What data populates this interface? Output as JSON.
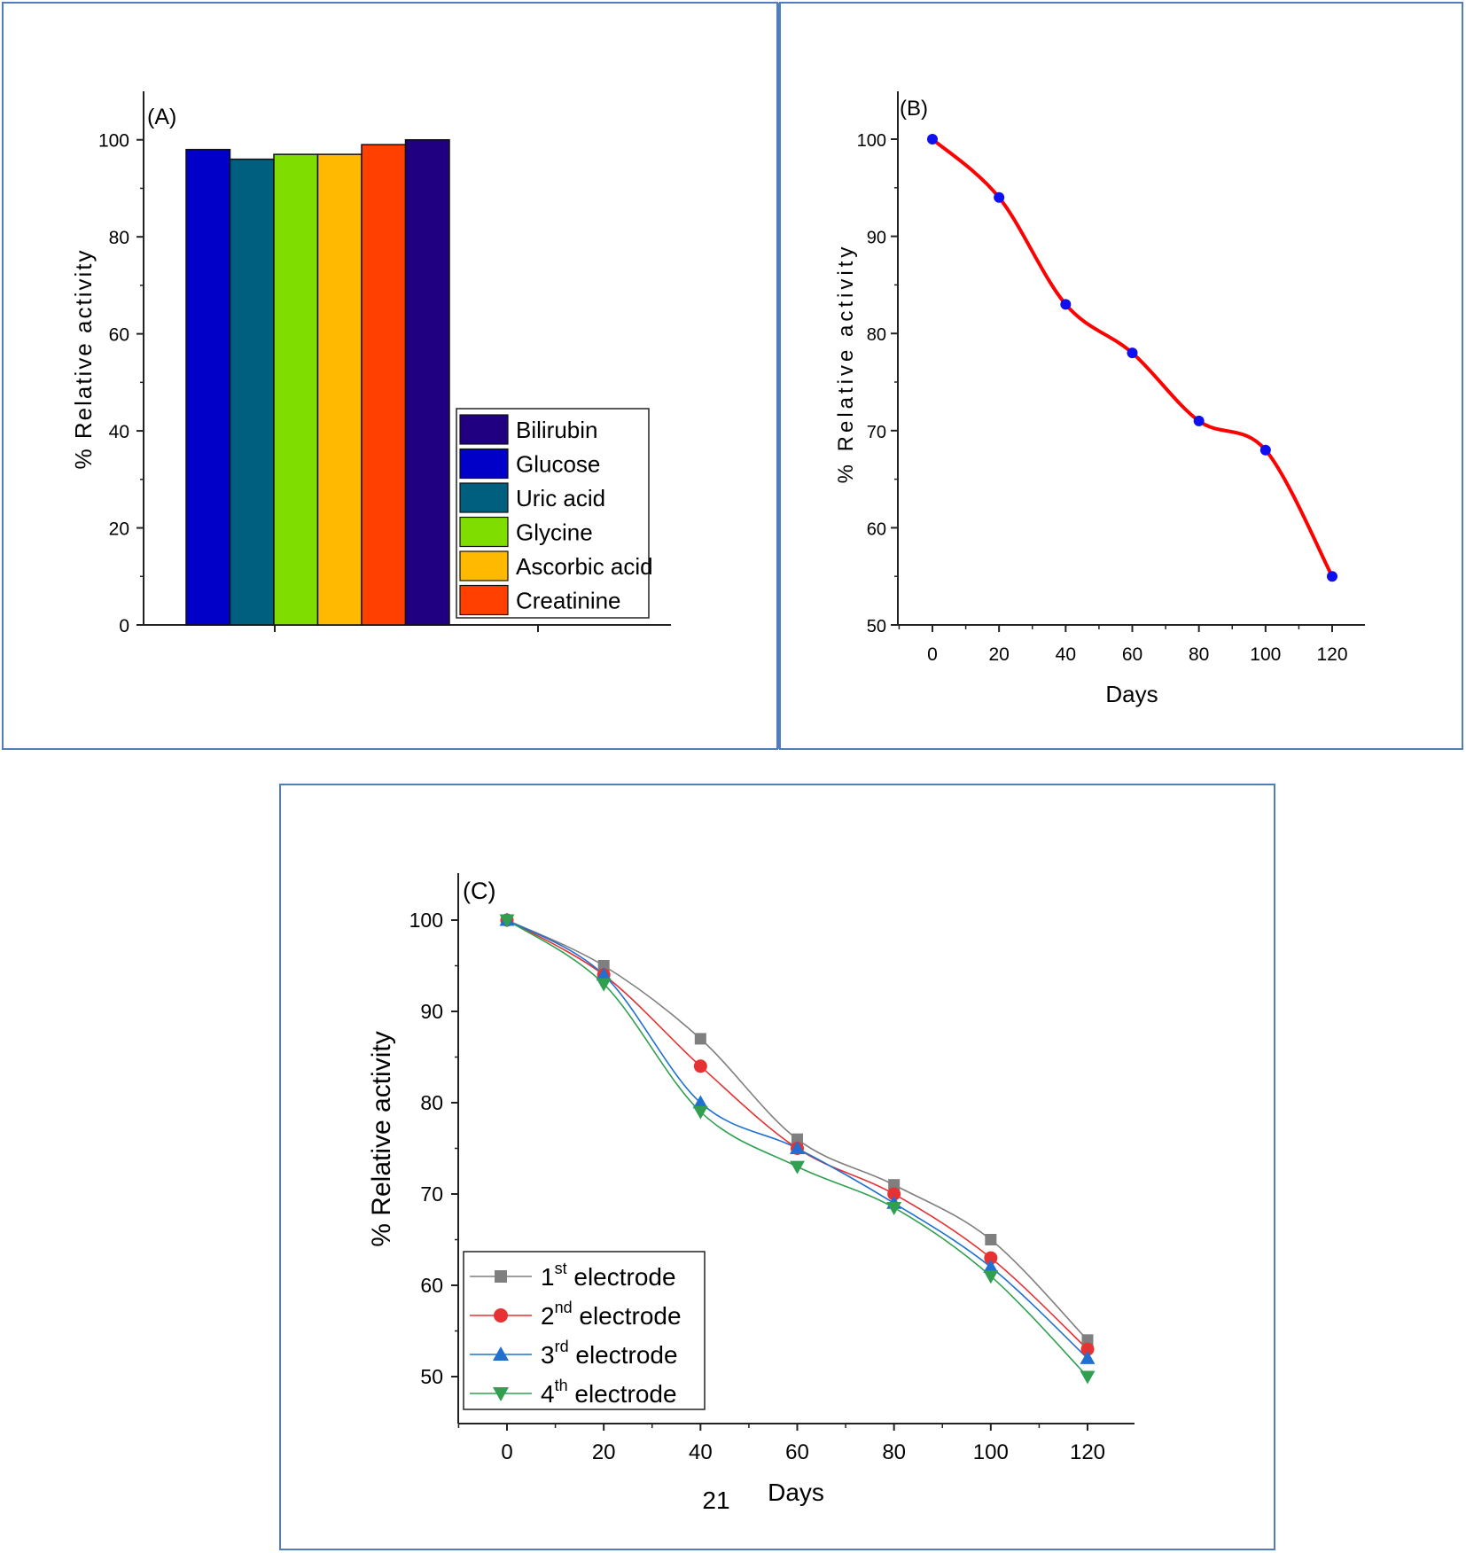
{
  "colors": {
    "frame": "#4f7dbd",
    "axis": "#222222",
    "b_line": "#ff0000",
    "b_marker": "#1010ee"
  },
  "chart_data": [
    {
      "panel": "(A)",
      "type": "bar",
      "ylabel": "% Relative activity",
      "ylim": [
        0,
        110
      ],
      "yticks": [
        0,
        20,
        40,
        60,
        80,
        100
      ],
      "bars": [
        {
          "name": "Glucose",
          "value": 98,
          "color": "#0000c8"
        },
        {
          "name": "Uric acid",
          "value": 96,
          "color": "#005f7f"
        },
        {
          "name": "Glycine",
          "value": 97,
          "color": "#7fdd00"
        },
        {
          "name": "Ascorbic acid",
          "value": 97,
          "color": "#ffba00"
        },
        {
          "name": "Creatinine",
          "value": 99,
          "color": "#ff4000"
        },
        {
          "name": "Bilirubin",
          "value": 100,
          "color": "#200080"
        }
      ],
      "legend": [
        "Bilirubin",
        "Glucose",
        "Uric acid",
        "Glycine",
        "Ascorbic acid",
        "Creatinine"
      ],
      "legend_position": "bottom-right"
    },
    {
      "panel": "(B)",
      "type": "line",
      "xlabel": "Days",
      "ylabel": "% Relative activity",
      "xlim": [
        -10,
        130
      ],
      "ylim": [
        50,
        105
      ],
      "xticks": [
        0,
        20,
        40,
        60,
        80,
        100,
        120
      ],
      "yticks": [
        50,
        60,
        70,
        80,
        90,
        100
      ],
      "x": [
        0,
        20,
        40,
        60,
        80,
        100,
        120
      ],
      "y": [
        100,
        94,
        83,
        78,
        71,
        68,
        55
      ]
    },
    {
      "panel": "(C)",
      "type": "line",
      "xlabel": "Days",
      "ylabel": "% Relative activity",
      "xlim": [
        -10,
        130
      ],
      "ylim": [
        45,
        105
      ],
      "xticks": [
        0,
        20,
        40,
        60,
        80,
        100,
        120
      ],
      "yticks": [
        50,
        60,
        70,
        80,
        90,
        100
      ],
      "x": [
        0,
        20,
        40,
        60,
        80,
        100,
        120
      ],
      "series": [
        {
          "name": "1",
          "sup": "st",
          "suffix": " electrode",
          "marker": "square",
          "color": "#7f7f7f",
          "values": [
            100,
            95,
            87,
            76,
            71,
            65,
            54
          ]
        },
        {
          "name": "2",
          "sup": "nd",
          "suffix": " electrode",
          "marker": "circle",
          "color": "#e63232",
          "values": [
            100,
            94,
            84,
            75,
            70,
            63,
            53
          ]
        },
        {
          "name": "3",
          "sup": "rd",
          "suffix": " electrode",
          "marker": "triangle-up",
          "color": "#2070d0",
          "values": [
            100,
            94,
            80,
            75,
            69,
            62,
            52
          ]
        },
        {
          "name": "4",
          "sup": "th",
          "suffix": " electrode",
          "marker": "triangle-down",
          "color": "#30a050",
          "values": [
            100,
            93,
            79,
            73,
            68.5,
            61,
            50
          ]
        }
      ],
      "legend_position": "bottom-left"
    }
  ],
  "page_number": "21"
}
